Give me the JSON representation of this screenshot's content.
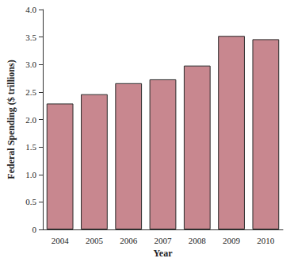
{
  "chart_data": {
    "type": "bar",
    "x_label": "Year",
    "y_label": "Federal Spending ($ trillions)",
    "categories": [
      "2004",
      "2005",
      "2006",
      "2007",
      "2008",
      "2009",
      "2010"
    ],
    "values": [
      2.29,
      2.46,
      2.66,
      2.73,
      2.98,
      3.52,
      3.46
    ],
    "color": "#c8878f",
    "ylim": [
      0,
      4
    ],
    "yticks": [
      0,
      0.5,
      {
        "value": 1,
        "label": "1.0"
      },
      1.5,
      {
        "value": 2,
        "label": "2.0"
      },
      2.5,
      {
        "value": 3,
        "label": "3.0"
      },
      3.5,
      {
        "value": 4,
        "label": "4.0"
      }
    ],
    "grid": false
  }
}
